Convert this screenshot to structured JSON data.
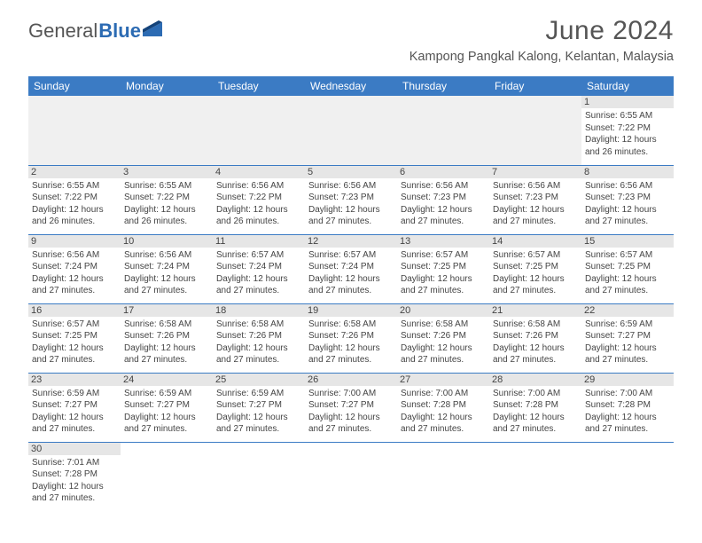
{
  "brand": {
    "name1": "General",
    "name2": "Blue"
  },
  "title": "June 2024",
  "location": "Kampong Pangkal Kalong, Kelantan, Malaysia",
  "colors": {
    "header_bg": "#3b7bc4",
    "header_text": "#ffffff",
    "daynum_bg": "#e6e6e6",
    "border": "#3b7bc4",
    "text": "#444444",
    "title_text": "#555555"
  },
  "fonts": {
    "title_size_pt": 22,
    "location_size_pt": 11,
    "header_size_pt": 9,
    "cell_size_pt": 7.5
  },
  "weekdays": [
    "Sunday",
    "Monday",
    "Tuesday",
    "Wednesday",
    "Thursday",
    "Friday",
    "Saturday"
  ],
  "weeks": [
    [
      null,
      null,
      null,
      null,
      null,
      null,
      {
        "n": "1",
        "sr": "6:55 AM",
        "ss": "7:22 PM",
        "dl": "12 hours and 26 minutes."
      }
    ],
    [
      {
        "n": "2",
        "sr": "6:55 AM",
        "ss": "7:22 PM",
        "dl": "12 hours and 26 minutes."
      },
      {
        "n": "3",
        "sr": "6:55 AM",
        "ss": "7:22 PM",
        "dl": "12 hours and 26 minutes."
      },
      {
        "n": "4",
        "sr": "6:56 AM",
        "ss": "7:22 PM",
        "dl": "12 hours and 26 minutes."
      },
      {
        "n": "5",
        "sr": "6:56 AM",
        "ss": "7:23 PM",
        "dl": "12 hours and 27 minutes."
      },
      {
        "n": "6",
        "sr": "6:56 AM",
        "ss": "7:23 PM",
        "dl": "12 hours and 27 minutes."
      },
      {
        "n": "7",
        "sr": "6:56 AM",
        "ss": "7:23 PM",
        "dl": "12 hours and 27 minutes."
      },
      {
        "n": "8",
        "sr": "6:56 AM",
        "ss": "7:23 PM",
        "dl": "12 hours and 27 minutes."
      }
    ],
    [
      {
        "n": "9",
        "sr": "6:56 AM",
        "ss": "7:24 PM",
        "dl": "12 hours and 27 minutes."
      },
      {
        "n": "10",
        "sr": "6:56 AM",
        "ss": "7:24 PM",
        "dl": "12 hours and 27 minutes."
      },
      {
        "n": "11",
        "sr": "6:57 AM",
        "ss": "7:24 PM",
        "dl": "12 hours and 27 minutes."
      },
      {
        "n": "12",
        "sr": "6:57 AM",
        "ss": "7:24 PM",
        "dl": "12 hours and 27 minutes."
      },
      {
        "n": "13",
        "sr": "6:57 AM",
        "ss": "7:25 PM",
        "dl": "12 hours and 27 minutes."
      },
      {
        "n": "14",
        "sr": "6:57 AM",
        "ss": "7:25 PM",
        "dl": "12 hours and 27 minutes."
      },
      {
        "n": "15",
        "sr": "6:57 AM",
        "ss": "7:25 PM",
        "dl": "12 hours and 27 minutes."
      }
    ],
    [
      {
        "n": "16",
        "sr": "6:57 AM",
        "ss": "7:25 PM",
        "dl": "12 hours and 27 minutes."
      },
      {
        "n": "17",
        "sr": "6:58 AM",
        "ss": "7:26 PM",
        "dl": "12 hours and 27 minutes."
      },
      {
        "n": "18",
        "sr": "6:58 AM",
        "ss": "7:26 PM",
        "dl": "12 hours and 27 minutes."
      },
      {
        "n": "19",
        "sr": "6:58 AM",
        "ss": "7:26 PM",
        "dl": "12 hours and 27 minutes."
      },
      {
        "n": "20",
        "sr": "6:58 AM",
        "ss": "7:26 PM",
        "dl": "12 hours and 27 minutes."
      },
      {
        "n": "21",
        "sr": "6:58 AM",
        "ss": "7:26 PM",
        "dl": "12 hours and 27 minutes."
      },
      {
        "n": "22",
        "sr": "6:59 AM",
        "ss": "7:27 PM",
        "dl": "12 hours and 27 minutes."
      }
    ],
    [
      {
        "n": "23",
        "sr": "6:59 AM",
        "ss": "7:27 PM",
        "dl": "12 hours and 27 minutes."
      },
      {
        "n": "24",
        "sr": "6:59 AM",
        "ss": "7:27 PM",
        "dl": "12 hours and 27 minutes."
      },
      {
        "n": "25",
        "sr": "6:59 AM",
        "ss": "7:27 PM",
        "dl": "12 hours and 27 minutes."
      },
      {
        "n": "26",
        "sr": "7:00 AM",
        "ss": "7:27 PM",
        "dl": "12 hours and 27 minutes."
      },
      {
        "n": "27",
        "sr": "7:00 AM",
        "ss": "7:28 PM",
        "dl": "12 hours and 27 minutes."
      },
      {
        "n": "28",
        "sr": "7:00 AM",
        "ss": "7:28 PM",
        "dl": "12 hours and 27 minutes."
      },
      {
        "n": "29",
        "sr": "7:00 AM",
        "ss": "7:28 PM",
        "dl": "12 hours and 27 minutes."
      }
    ],
    [
      {
        "n": "30",
        "sr": "7:01 AM",
        "ss": "7:28 PM",
        "dl": "12 hours and 27 minutes."
      },
      null,
      null,
      null,
      null,
      null,
      null
    ]
  ],
  "labels": {
    "sunrise": "Sunrise:",
    "sunset": "Sunset:",
    "daylight": "Daylight:"
  }
}
